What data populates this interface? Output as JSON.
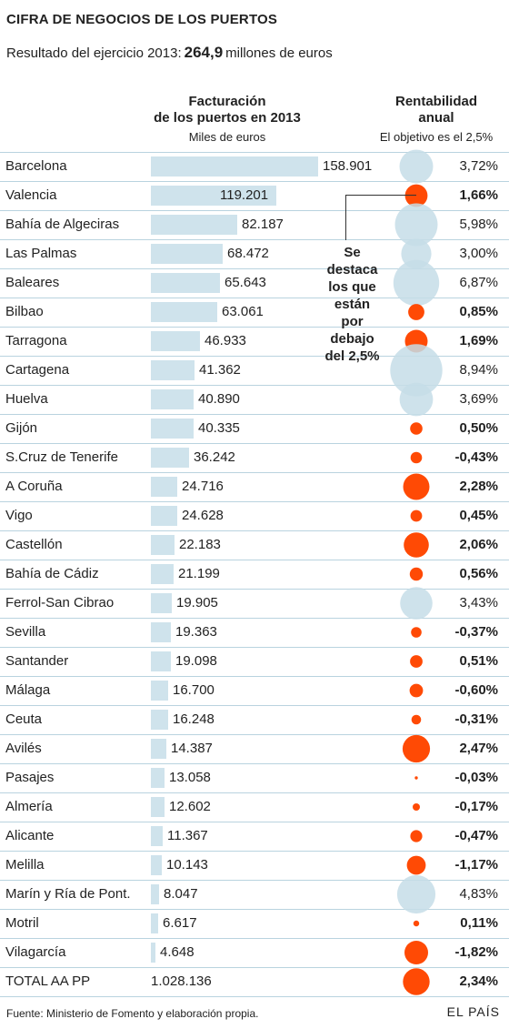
{
  "header": {
    "title": "CIFRA DE NEGOCIOS DE LOS PUERTOS",
    "subtitle_pre": "Resultado del ejercicio 2013:",
    "subtitle_value": "264,9",
    "subtitle_post": "millones de euros"
  },
  "columns": {
    "facturacion_line1": "Facturación",
    "facturacion_line2": "de los puertos en 2013",
    "facturacion_unit": "Miles de euros",
    "rentabilidad_line1": "Rentabilidad",
    "rentabilidad_line2": "anual",
    "rentabilidad_note": "El objetivo es  el 2,5%"
  },
  "note": {
    "line1": "Se",
    "line2": "destaca",
    "line3": "los que",
    "line4": "están",
    "line5": "por",
    "line6": "debajo",
    "line7": "del 2,5%"
  },
  "footer": {
    "source": "Fuente: Ministerio de Fomento y elaboración propia.",
    "brand": "EL PAÍS"
  },
  "colors": {
    "bar": "#cfe3ec",
    "above_target": "#c6dde8",
    "below_target": "#ff4a05"
  },
  "chart_data": {
    "type": "table",
    "target_rentabilidad": 2.5,
    "categories": [
      "Barcelona",
      "Valencia",
      "Bahía de Algeciras",
      "Las Palmas",
      "Baleares",
      "Bilbao",
      "Tarragona",
      "Cartagena",
      "Huelva",
      "Gijón",
      "S.Cruz de Tenerife",
      "A Coruña",
      "Vigo",
      "Castellón",
      "Bahía de Cádiz",
      "Ferrol-San Cibrao",
      "Sevilla",
      "Santander",
      "Málaga",
      "Ceuta",
      "Avilés",
      "Pasajes",
      "Almería",
      "Alicante",
      "Melilla",
      "Marín y Ría de Pont.",
      "Motril",
      "Vilagarcía",
      "TOTAL AA PP"
    ],
    "facturacion": [
      158901,
      119201,
      82187,
      68472,
      65643,
      63061,
      46933,
      41362,
      40890,
      40335,
      36242,
      24716,
      24628,
      22183,
      21199,
      19905,
      19363,
      19098,
      16700,
      16248,
      14387,
      13058,
      12602,
      11367,
      10143,
      8047,
      6617,
      4648,
      1028136
    ],
    "facturacion_labels": [
      "158.901",
      "119.201",
      "82.187",
      "68.472",
      "65.643",
      "63.061",
      "46.933",
      "41.362",
      "40.890",
      "40.335",
      "36.242",
      "24.716",
      "24.628",
      "22.183",
      "21.199",
      "19.905",
      "19.363",
      "19.098",
      "16.700",
      "16.248",
      "14.387",
      "13.058",
      "12.602",
      "11.367",
      "10.143",
      "8.047",
      "6.617",
      "4.648",
      "1.028.136"
    ],
    "rentabilidad": [
      3.72,
      1.66,
      5.98,
      3.0,
      6.87,
      0.85,
      1.69,
      8.94,
      3.69,
      0.5,
      -0.43,
      2.28,
      0.45,
      2.06,
      0.56,
      3.43,
      -0.37,
      0.51,
      -0.6,
      -0.31,
      2.47,
      -0.03,
      -0.17,
      -0.47,
      -1.17,
      4.83,
      0.11,
      -1.82,
      2.34
    ],
    "rentabilidad_labels": [
      "3,72%",
      "1,66%",
      "5,98%",
      "3,00%",
      "6,87%",
      "0,85%",
      "1,69%",
      "8,94%",
      "3,69%",
      "0,50%",
      "-0,43%",
      "2,28%",
      "0,45%",
      "2,06%",
      "0,56%",
      "3,43%",
      "-0,37%",
      "0,51%",
      "-0,60%",
      "-0,31%",
      "2,47%",
      "-0,03%",
      "-0,17%",
      "-0,47%",
      "-1,17%",
      "4,83%",
      "0,11%",
      "-1,82%",
      "2,34%"
    ]
  }
}
